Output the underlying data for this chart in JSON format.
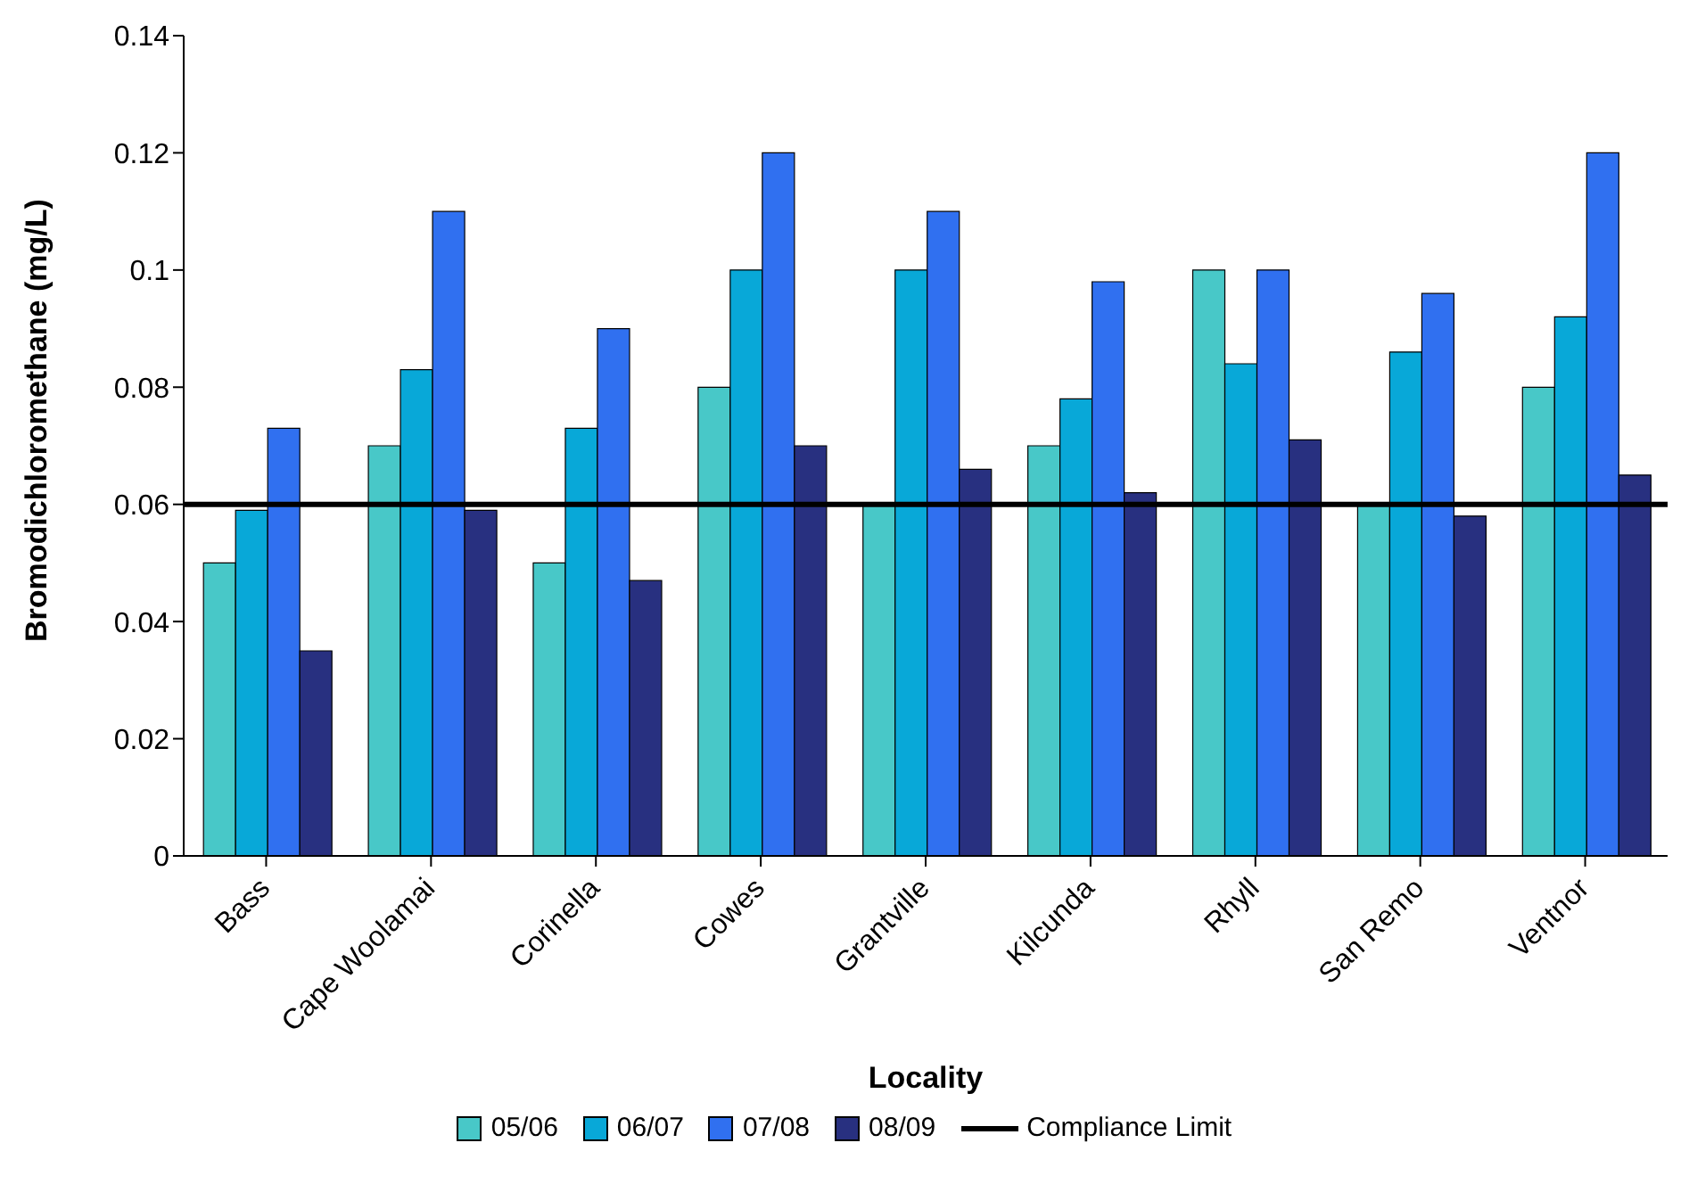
{
  "chart_data": {
    "type": "bar",
    "xlabel": "Locality",
    "ylabel": "Bromodichloromethane (mg/L)",
    "categories": [
      "Bass",
      "Cape Woolamai",
      "Corinella",
      "Cowes",
      "Grantville",
      "Kilcunda",
      "Rhyll",
      "San Remo",
      "Ventnor"
    ],
    "series": [
      {
        "name": "05/06",
        "color": "#48c8c8",
        "values": [
          0.05,
          0.07,
          0.05,
          0.08,
          0.06,
          0.07,
          0.1,
          0.06,
          0.08
        ]
      },
      {
        "name": "06/07",
        "color": "#08a8d8",
        "values": [
          0.059,
          0.083,
          0.073,
          0.1,
          0.1,
          0.078,
          0.084,
          0.086,
          0.092
        ]
      },
      {
        "name": "07/08",
        "color": "#3070f0",
        "values": [
          0.073,
          0.11,
          0.09,
          0.12,
          0.11,
          0.098,
          0.1,
          0.096,
          0.12
        ]
      },
      {
        "name": "08/09",
        "color": "#283080",
        "values": [
          0.035,
          0.059,
          0.047,
          0.07,
          0.066,
          0.062,
          0.071,
          0.058,
          0.065
        ]
      }
    ],
    "ref_lines": [
      {
        "axis": "y",
        "value": 0.06,
        "label": "Compliance Limit",
        "color": "#000000",
        "line_style": "solid"
      }
    ],
    "ylim": [
      0,
      0.14
    ],
    "yticks": [
      0,
      0.02,
      0.04,
      0.06,
      0.08,
      0.1,
      0.12,
      0.14
    ],
    "grid": false,
    "legend": "bottom"
  }
}
